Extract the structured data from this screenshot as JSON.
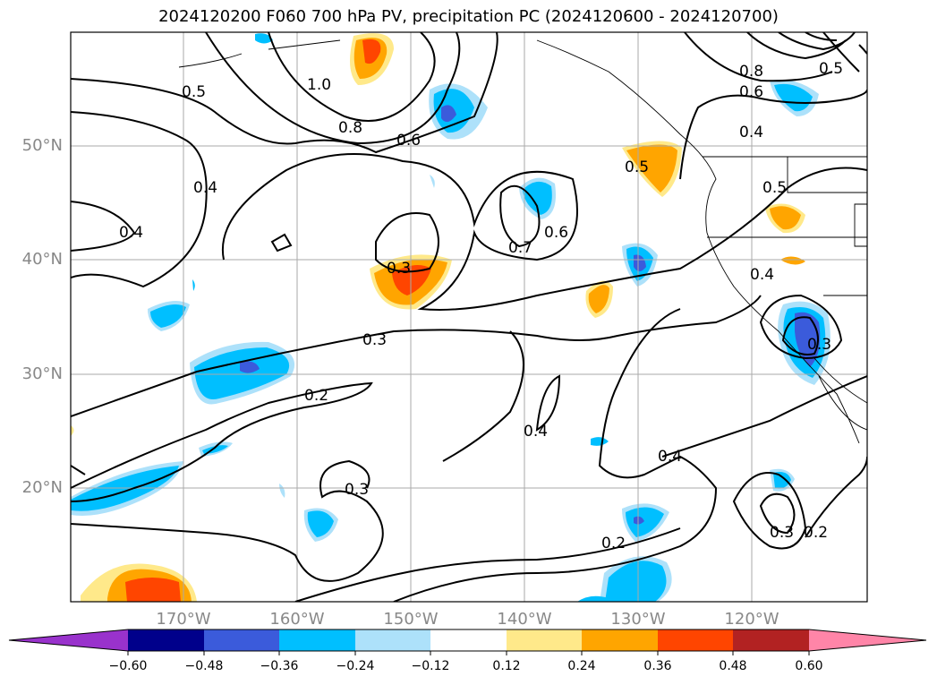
{
  "title": "2024120200 F060 700 hPa PV, precipitation PC (2024120600 - 2024120700)",
  "lat_labels": [
    "50°N",
    "40°N",
    "30°N",
    "20°N"
  ],
  "lon_labels": [
    "170°W",
    "160°W",
    "150°W",
    "140°W",
    "130°W",
    "120°W"
  ],
  "contour_labels": [
    "0.5",
    "1.0",
    "0.8",
    "0.6",
    "0.4",
    "0.4",
    "0.3",
    "0.7",
    "0.6",
    "0.5",
    "0.8",
    "0.6",
    "0.5",
    "0.4",
    "0.5",
    "0.4",
    "0.3",
    "0.3",
    "0.2",
    "0.4",
    "0.3",
    "0.4",
    "0.2",
    "0.3",
    "0.2"
  ],
  "colorbar": {
    "ticks": [
      "−0.60",
      "−0.48",
      "−0.36",
      "−0.24",
      "−0.12",
      "0.12",
      "0.24",
      "0.36",
      "0.48",
      "0.60"
    ],
    "colors": [
      "#9932CC",
      "#00008B",
      "#3B5BDB",
      "#00BFFF",
      "#ADE1FA",
      "#FFFFFF",
      "#FFE98A",
      "#FFA500",
      "#FF4500",
      "#B22222",
      "#FF85A8"
    ]
  },
  "legend_colors": {
    "orange": "#FFA500",
    "red": "#FF4500",
    "light_yellow": "#FFE98A",
    "sky": "#00BFFF",
    "light_sky": "#ADE1FA",
    "royal": "#3B5BDB"
  }
}
